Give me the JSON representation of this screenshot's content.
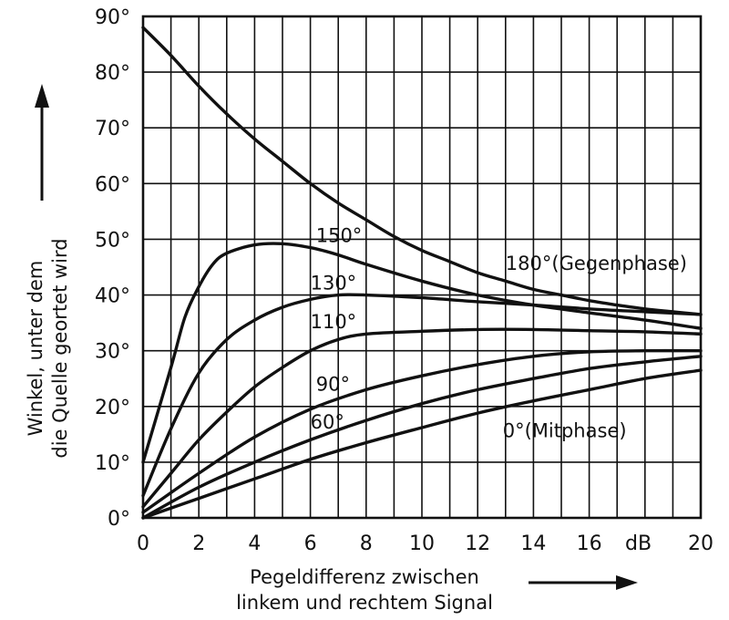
{
  "chart_data": {
    "type": "line",
    "xlabel_line1": "Pegeldifferenz zwischen",
    "xlabel_line2": "linkem und rechtem Signal",
    "ylabel_line1": "Winkel, unter dem",
    "ylabel_line2": "die Quelle geortet wird",
    "x_unit": "dB",
    "xlim": [
      0,
      20
    ],
    "ylim": [
      0,
      90
    ],
    "x_ticks": [
      "0",
      "2",
      "4",
      "6",
      "8",
      "10",
      "12",
      "14",
      "16",
      "",
      "20"
    ],
    "y_ticks": [
      "0°",
      "10°",
      "20°",
      "30°",
      "40°",
      "50°",
      "60°",
      "70°",
      "80°",
      "90°"
    ],
    "grid": true,
    "series": [
      {
        "name": "180°(Gegenphase)",
        "x": [
          0,
          1,
          2,
          3,
          4,
          5,
          6,
          7,
          8,
          9,
          10,
          11,
          12,
          13,
          14,
          15,
          16,
          17,
          18,
          19,
          20
        ],
        "y": [
          88,
          83,
          77.5,
          72.5,
          68,
          64,
          60,
          56.5,
          53.5,
          50.5,
          48,
          46,
          44,
          42.5,
          41,
          40,
          39,
          38.2,
          37.5,
          37,
          36.5
        ]
      },
      {
        "name": "150°",
        "x": [
          0,
          1,
          1.5,
          2,
          2.5,
          3,
          4,
          5,
          6,
          7,
          8,
          10,
          12,
          14,
          16,
          18,
          20
        ],
        "y": [
          10,
          27,
          36,
          41.5,
          45.5,
          47.5,
          49,
          49.2,
          48.5,
          47.2,
          45.5,
          42.5,
          40,
          38.2,
          36.8,
          35.5,
          34
        ]
      },
      {
        "name": "130°",
        "x": [
          0,
          1,
          2,
          3,
          4,
          5,
          6,
          7,
          8,
          10,
          12,
          14,
          16,
          18,
          20
        ],
        "y": [
          4,
          16,
          26,
          32,
          35.5,
          37.8,
          39.2,
          40,
          40,
          39.5,
          38.8,
          38.2,
          37.5,
          37,
          36.5
        ]
      },
      {
        "name": "110°",
        "x": [
          0,
          1,
          2,
          3,
          4,
          5,
          6,
          7,
          8,
          10,
          12,
          14,
          16,
          18,
          20
        ],
        "y": [
          2,
          8,
          14,
          19,
          23.5,
          27,
          30,
          32,
          33,
          33.5,
          33.8,
          33.8,
          33.6,
          33.4,
          33
        ]
      },
      {
        "name": "90°",
        "x": [
          0,
          2,
          4,
          6,
          8,
          10,
          12,
          14,
          16,
          18,
          20
        ],
        "y": [
          1,
          8,
          14.5,
          19.5,
          23,
          25.5,
          27.5,
          29,
          29.8,
          30,
          30
        ]
      },
      {
        "name": "60°",
        "x": [
          0,
          2,
          4,
          6,
          8,
          10,
          12,
          14,
          16,
          18,
          20
        ],
        "y": [
          0,
          5.5,
          10,
          14,
          17.5,
          20.5,
          23,
          25,
          26.8,
          28,
          29
        ]
      },
      {
        "name": "0°(Mitphase)",
        "x": [
          0,
          2,
          4,
          6,
          8,
          10,
          12,
          14,
          16,
          18,
          20
        ],
        "y": [
          0,
          3.5,
          7,
          10.5,
          13.5,
          16.2,
          18.8,
          21,
          23,
          25,
          26.5
        ]
      }
    ]
  }
}
